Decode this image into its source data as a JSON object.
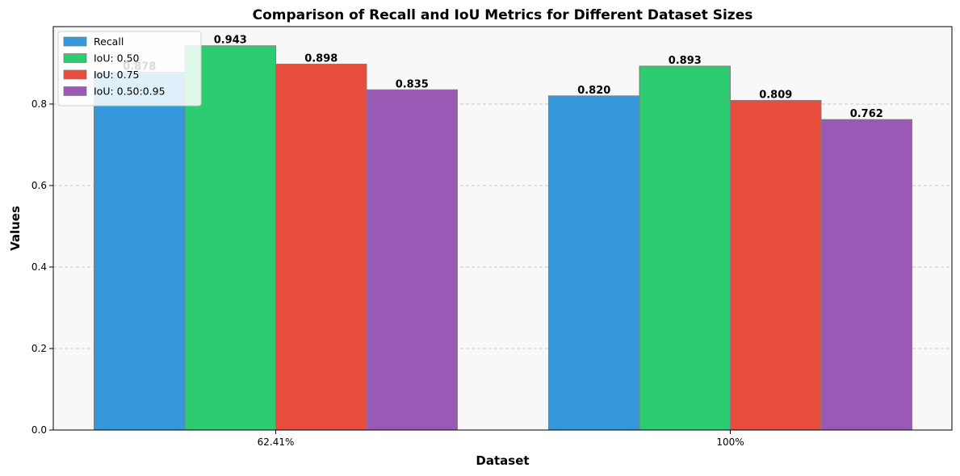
{
  "chart_data": {
    "type": "bar",
    "title": "Comparison of Recall and IoU Metrics for Different Dataset Sizes",
    "xlabel": "Dataset",
    "ylabel": "Values",
    "categories": [
      "62.41%",
      "100%"
    ],
    "series": [
      {
        "name": "Recall",
        "values": [
          0.878,
          0.82
        ],
        "labels": [
          "0.878",
          "0.820"
        ],
        "color": "#3498db"
      },
      {
        "name": "IoU: 0.50",
        "values": [
          0.943,
          0.893
        ],
        "labels": [
          "0.943",
          "0.893"
        ],
        "color": "#2ecc71"
      },
      {
        "name": "IoU: 0.75",
        "values": [
          0.898,
          0.809
        ],
        "labels": [
          "0.898",
          "0.809"
        ],
        "color": "#e74c3c"
      },
      {
        "name": "IoU: 0.50:0.95",
        "values": [
          0.835,
          0.762
        ],
        "labels": [
          "0.835",
          "0.762"
        ],
        "color": "#9b59b6"
      }
    ],
    "ylim": [
      0,
      0.99
    ],
    "yticks": [
      0.0,
      0.2,
      0.4,
      0.6,
      0.8
    ],
    "ytick_labels": [
      "0.0",
      "0.2",
      "0.4",
      "0.6",
      "0.8"
    ],
    "grid": "y-dashed",
    "legend_position": "top-left",
    "plot_background": "#f8f8f8",
    "bar_edge_color": "#808080"
  }
}
